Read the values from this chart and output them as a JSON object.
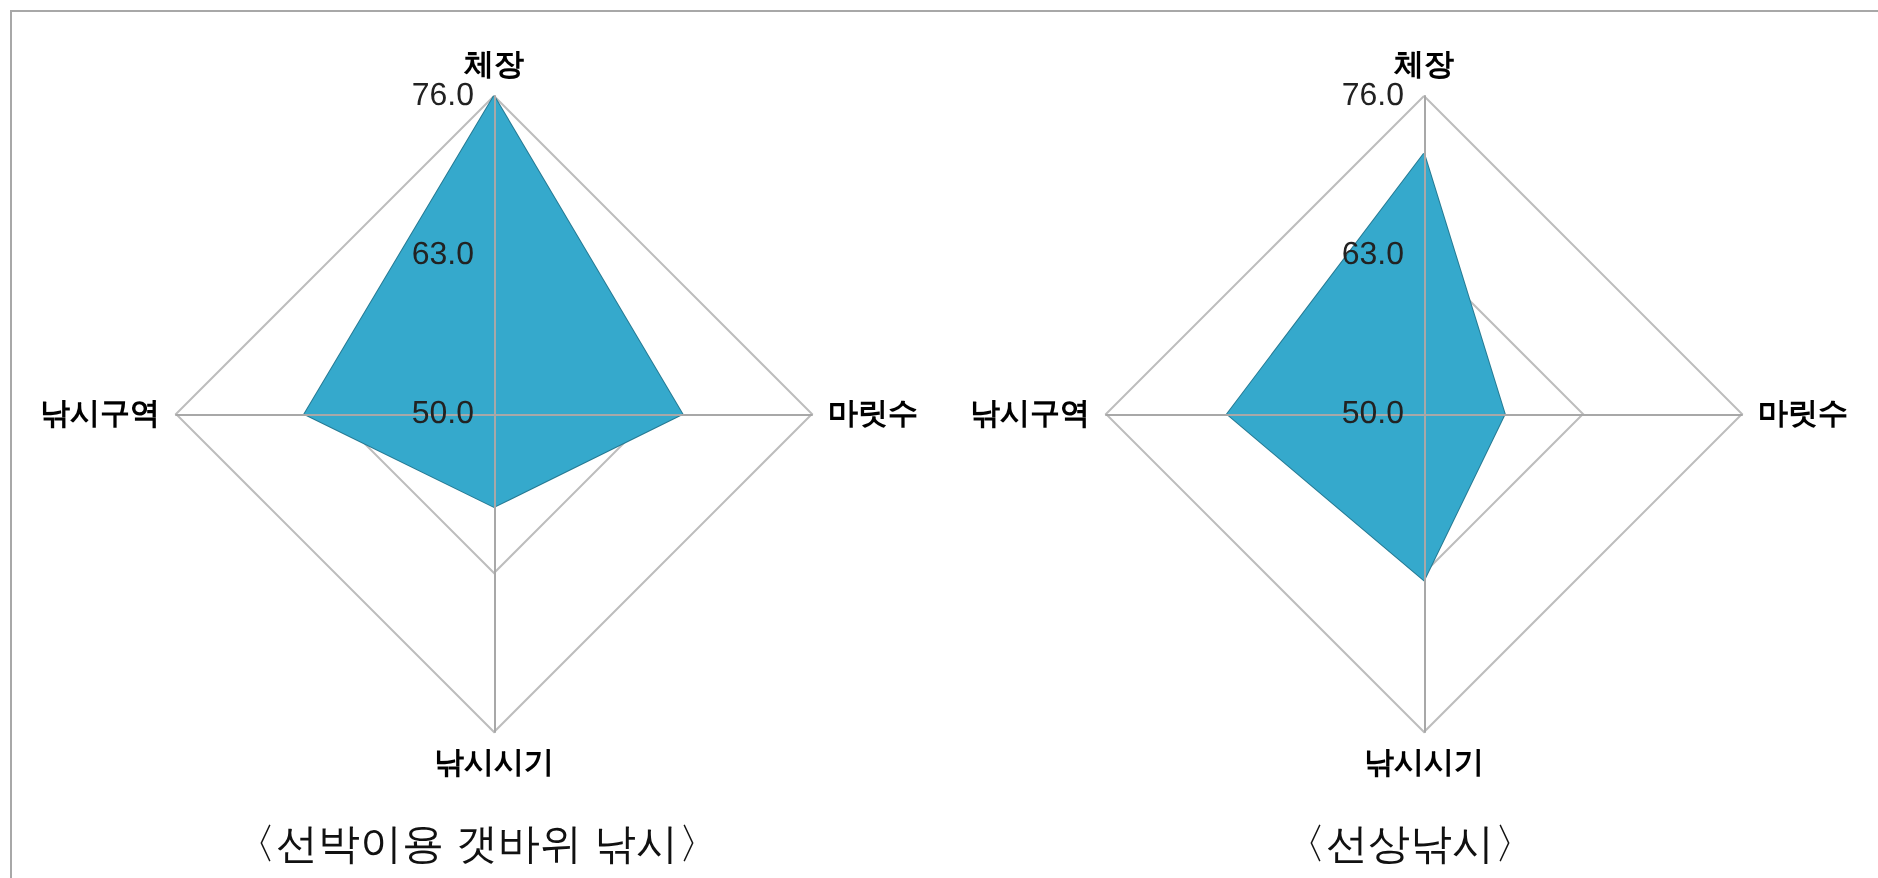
{
  "chart_data": [
    {
      "type": "radar",
      "title": "〈선박이용 갯바위 낚시〉",
      "categories": [
        "체장",
        "마릿수",
        "낚시시기",
        "낚시구역"
      ],
      "series": [
        {
          "color": "#35a9cc",
          "values": [
            76.0,
            65.4,
            57.6,
            65.5
          ]
        }
      ],
      "ylim": [
        50,
        76
      ],
      "yticks": [
        {
          "value": 50,
          "label": "50.0"
        },
        {
          "value": 63,
          "label": "63.0"
        },
        {
          "value": 76,
          "label": "76.0"
        }
      ],
      "grid": true,
      "marker": "none"
    },
    {
      "type": "radar",
      "title": "〈선상낚시〉",
      "categories": [
        "체장",
        "마릿수",
        "낚시시기",
        "낚시구역"
      ],
      "series": [
        {
          "color": "#35a9cc",
          "values": [
            71.3,
            56.6,
            63.6,
            66.1
          ]
        }
      ],
      "ylim": [
        50,
        76
      ],
      "yticks": [
        {
          "value": 50,
          "label": "50.0"
        },
        {
          "value": 63,
          "label": "63.0"
        },
        {
          "value": 76,
          "label": "76.0"
        }
      ],
      "grid": true,
      "marker": "none"
    }
  ]
}
